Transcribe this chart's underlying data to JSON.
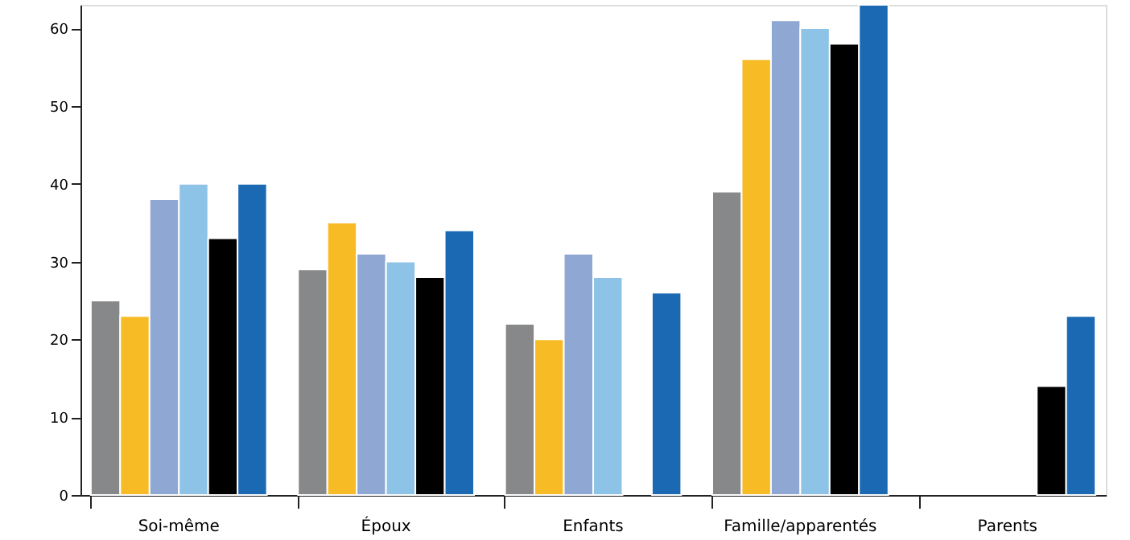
{
  "chart_data": {
    "type": "bar",
    "categories": [
      "Soi-même",
      "Époux",
      "Enfants",
      "Famille/apparentés",
      "Parents"
    ],
    "series": [
      {
        "color": "#87888a",
        "values": [
          25,
          29,
          22,
          39,
          null
        ]
      },
      {
        "color": "#f7bb26",
        "values": [
          23,
          35,
          20,
          56,
          null
        ]
      },
      {
        "color": "#8fa7d3",
        "values": [
          38,
          31,
          31,
          61,
          null
        ]
      },
      {
        "color": "#8dc3e6",
        "values": [
          40,
          30,
          28,
          60,
          null
        ]
      },
      {
        "color": "#000000",
        "values": [
          33,
          28,
          null,
          58,
          14
        ]
      },
      {
        "color": "#1a69b2",
        "values": [
          40,
          34,
          26,
          63,
          23
        ]
      }
    ],
    "ylim": [
      0,
      63
    ],
    "yticks": [
      0,
      10,
      20,
      30,
      40,
      50,
      60
    ],
    "grid": false,
    "legend": false
  }
}
